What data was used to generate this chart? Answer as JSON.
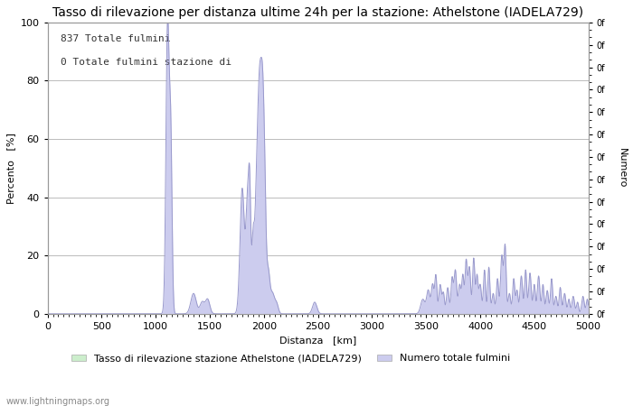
{
  "title": "Tasso di rilevazione per distanza ultime 24h per la stazione: Athelstone (IADELA729)",
  "xlabel": "Distanza   [km]",
  "ylabel_left": "Percento   [%]",
  "ylabel_right": "Numero",
  "annotation_line1": "837 Totale fulmini",
  "annotation_line2": "0 Totale fulmini stazione di",
  "xlim": [
    0,
    5000
  ],
  "ylim": [
    0,
    100
  ],
  "xticks": [
    0,
    500,
    1000,
    1500,
    2000,
    2500,
    3000,
    3500,
    4000,
    4500,
    5000
  ],
  "yticks_left": [
    0,
    20,
    40,
    60,
    80,
    100
  ],
  "background_color": "#ffffff",
  "grid_color": "#bbbbbb",
  "line_color": "#9999cc",
  "fill_color_blue": "#ccccee",
  "fill_color_green": "#cceecc",
  "watermark": "www.lightningmaps.org",
  "legend_label1": "Tasso di rilevazione stazione Athelstone (IADELA729)",
  "legend_label2": "Numero totale fulmini",
  "right_ytick_labels": [
    "0f",
    "0f",
    "0f",
    "0f",
    "0f",
    "0f",
    "0f",
    "0f",
    "0f",
    "0f",
    "0f",
    "0f",
    "0f",
    "0f"
  ],
  "title_fontsize": 10,
  "axis_fontsize": 8,
  "tick_fontsize": 8
}
